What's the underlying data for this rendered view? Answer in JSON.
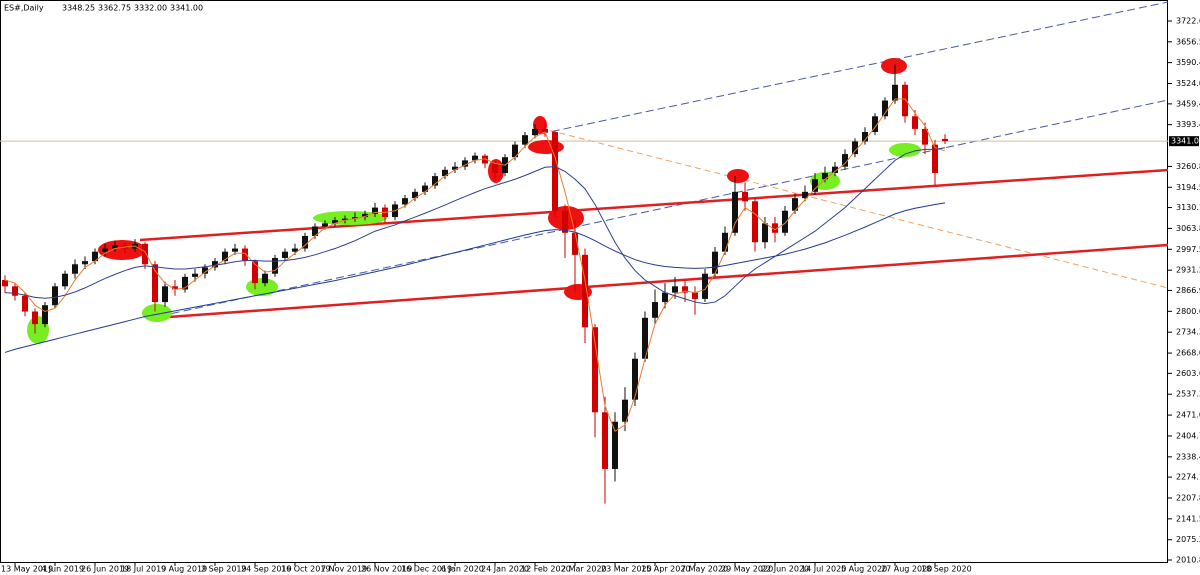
{
  "chart_data": {
    "type": "candlestick",
    "title": "ES#,Daily",
    "ohlc_labels": [
      "3348.25",
      "3362.75",
      "3332.00",
      "3341.00"
    ],
    "categories": [
      null,
      "13 May 2019",
      null,
      null,
      null,
      "4 Jun 2019",
      null,
      null,
      null,
      "26 Jun 2019",
      null,
      null,
      null,
      "18 Jul 2019",
      null,
      null,
      null,
      "9 Aug 2019",
      null,
      null,
      null,
      "2 Sep 2019",
      null,
      null,
      null,
      "24 Sep 2019",
      null,
      null,
      null,
      "16 Oct 2019",
      null,
      null,
      null,
      "7 Nov 2019",
      null,
      null,
      null,
      "26 Nov 2019",
      null,
      null,
      null,
      "16 Dec 2019",
      null,
      null,
      null,
      "6 Jan 2020",
      null,
      null,
      null,
      "24 Jan 2020",
      null,
      null,
      null,
      "12 Feb 2020",
      null,
      null,
      null,
      "2 Mar 2020",
      null,
      null,
      null,
      "23 Mar 2020",
      null,
      null,
      null,
      "15 Apr 2020",
      null,
      null,
      null,
      "7 May 2020",
      null,
      null,
      null,
      "29 May 2020",
      null,
      null,
      null,
      "22 Jun 2020",
      null,
      null,
      null,
      "14 Jul 2020",
      null,
      null,
      null,
      "5 Aug 2020",
      null,
      null,
      null,
      "27 Aug 2020",
      null,
      null,
      null,
      "18 Sep 2020",
      null
    ],
    "open": [
      2900,
      2880,
      2850,
      2800,
      2760,
      2820,
      2880,
      2920,
      2950,
      2960,
      2990,
      3000,
      3010,
      3000,
      3015,
      2950,
      2830,
      2880,
      2870,
      2910,
      2920,
      2940,
      2960,
      2990,
      3000,
      2960,
      2890,
      2920,
      2970,
      2990,
      3000,
      3040,
      3070,
      3080,
      3090,
      3095,
      3100,
      3110,
      3130,
      3100,
      3140,
      3160,
      3180,
      3200,
      3230,
      3250,
      3260,
      3280,
      3295,
      3270,
      3240,
      3290,
      3330,
      3360,
      3380,
      3370,
      3120,
      3050,
      2980,
      2750,
      2480,
      2300,
      2450,
      2520,
      2650,
      2780,
      2830,
      2860,
      2880,
      2860,
      2840,
      2920,
      2990,
      3050,
      3180,
      3150,
      3020,
      3080,
      3050,
      3120,
      3160,
      3180,
      3220,
      3240,
      3260,
      3300,
      3340,
      3370,
      3420,
      3470,
      3520,
      3420,
      3380,
      3330,
      3348.25
    ],
    "high": [
      2915,
      2890,
      2860,
      2810,
      2830,
      2890,
      2930,
      2965,
      2975,
      3000,
      3015,
      3025,
      3020,
      3030,
      3020,
      2960,
      2895,
      2900,
      2920,
      2935,
      2950,
      2970,
      3000,
      3015,
      3010,
      2965,
      2930,
      2980,
      3000,
      3015,
      3050,
      3080,
      3090,
      3100,
      3105,
      3115,
      3120,
      3145,
      3140,
      3150,
      3170,
      3190,
      3210,
      3240,
      3260,
      3275,
      3290,
      3305,
      3300,
      3280,
      3300,
      3340,
      3370,
      3395,
      3400,
      3375,
      3140,
      3090,
      3000,
      2760,
      2530,
      2480,
      2560,
      2670,
      2800,
      2870,
      2890,
      2910,
      2900,
      2880,
      2935,
      3005,
      3070,
      3230,
      3210,
      3160,
      3100,
      3100,
      3135,
      3175,
      3200,
      3240,
      3260,
      3275,
      3315,
      3350,
      3385,
      3430,
      3480,
      3585,
      3530,
      3440,
      3400,
      3345,
      3362.75
    ],
    "low": [
      2860,
      2835,
      2785,
      2730,
      2750,
      2810,
      2870,
      2905,
      2935,
      2950,
      2975,
      2990,
      2985,
      2990,
      2935,
      2800,
      2815,
      2850,
      2860,
      2895,
      2905,
      2930,
      2950,
      2980,
      2945,
      2870,
      2880,
      2910,
      2960,
      2980,
      2990,
      3030,
      3060,
      3070,
      3080,
      3085,
      3090,
      3100,
      3080,
      3090,
      3130,
      3150,
      3170,
      3190,
      3220,
      3240,
      3250,
      3270,
      3255,
      3215,
      3230,
      3280,
      3320,
      3350,
      3355,
      3100,
      2970,
      2860,
      2700,
      2400,
      2190,
      2260,
      2420,
      2500,
      2640,
      2760,
      2810,
      2840,
      2830,
      2790,
      2830,
      2910,
      2980,
      3040,
      3120,
      2990,
      3000,
      3020,
      3040,
      3110,
      3150,
      3170,
      3210,
      3230,
      3250,
      3290,
      3330,
      3360,
      3410,
      3460,
      3400,
      3360,
      3300,
      3200,
      3332
    ],
    "close": [
      2880,
      2850,
      2800,
      2760,
      2820,
      2880,
      2920,
      2950,
      2960,
      2990,
      3000,
      3010,
      3000,
      3015,
      2950,
      2830,
      2880,
      2870,
      2910,
      2920,
      2940,
      2960,
      2990,
      3000,
      2960,
      2890,
      2920,
      2970,
      2990,
      3000,
      3040,
      3070,
      3080,
      3090,
      3095,
      3100,
      3110,
      3130,
      3100,
      3140,
      3160,
      3180,
      3200,
      3230,
      3250,
      3260,
      3280,
      3295,
      3270,
      3240,
      3290,
      3330,
      3360,
      3380,
      3370,
      3120,
      3050,
      2980,
      2750,
      2480,
      2300,
      2450,
      2520,
      2650,
      2780,
      2830,
      2860,
      2880,
      2860,
      2840,
      2920,
      2990,
      3050,
      3180,
      3150,
      3020,
      3080,
      3050,
      3120,
      3160,
      3180,
      3220,
      3240,
      3260,
      3300,
      3340,
      3370,
      3420,
      3470,
      3520,
      3420,
      3380,
      3330,
      3240,
      3341
    ],
    "up_color": "#111111",
    "down_color": "#d00000",
    "series": [
      {
        "color": "#ee7a30",
        "values": [
          2900,
          2890,
          2860,
          2820,
          2800,
          2810,
          2850,
          2900,
          2940,
          2960,
          2985,
          3000,
          3005,
          3008,
          2990,
          2930,
          2890,
          2870,
          2875,
          2900,
          2925,
          2945,
          2965,
          2985,
          2985,
          2950,
          2925,
          2930,
          2960,
          2985,
          3010,
          3040,
          3065,
          3080,
          3090,
          3095,
          3102,
          3115,
          3115,
          3120,
          3135,
          3160,
          3180,
          3205,
          3230,
          3250,
          3265,
          3280,
          3285,
          3270,
          3265,
          3290,
          3325,
          3355,
          3370,
          3290,
          3180,
          3050,
          2900,
          2700,
          2500,
          2420,
          2440,
          2530,
          2650,
          2760,
          2820,
          2855,
          2865,
          2860,
          2870,
          2920,
          2990,
          3080,
          3130,
          3110,
          3080,
          3060,
          3080,
          3120,
          3155,
          3190,
          3220,
          3245,
          3270,
          3310,
          3345,
          3385,
          3430,
          3475,
          3475,
          3430,
          3390,
          3320,
          3310
        ]
      },
      {
        "color": "#2e3f8c",
        "values": [
          2860,
          2858,
          2852,
          2845,
          2842,
          2845,
          2852,
          2862,
          2875,
          2890,
          2905,
          2918,
          2930,
          2940,
          2945,
          2942,
          2938,
          2935,
          2935,
          2938,
          2942,
          2947,
          2952,
          2958,
          2962,
          2962,
          2960,
          2960,
          2962,
          2966,
          2972,
          2980,
          2990,
          3000,
          3012,
          3025,
          3040,
          3055,
          3065,
          3075,
          3088,
          3100,
          3112,
          3125,
          3138,
          3152,
          3165,
          3178,
          3190,
          3200,
          3210,
          3220,
          3232,
          3245,
          3258,
          3260,
          3245,
          3220,
          3190,
          3140,
          3080,
          3020,
          2970,
          2930,
          2900,
          2880,
          2860,
          2850,
          2840,
          2830,
          2825,
          2830,
          2850,
          2880,
          2910,
          2935,
          2955,
          2975,
          2995,
          3015,
          3035,
          3055,
          3080,
          3105,
          3130,
          3160,
          3190,
          3220,
          3250,
          3280,
          3300,
          3310,
          3315,
          3315,
          3320
        ]
      },
      {
        "color": "#1f3a93",
        "values": [
          2670,
          2680,
          2688,
          2696,
          2704,
          2712,
          2720,
          2728,
          2736,
          2744,
          2752,
          2760,
          2768,
          2776,
          2784,
          2790,
          2796,
          2802,
          2808,
          2814,
          2820,
          2826,
          2832,
          2838,
          2844,
          2850,
          2856,
          2862,
          2868,
          2874,
          2880,
          2886,
          2892,
          2898,
          2905,
          2912,
          2919,
          2926,
          2933,
          2940,
          2947,
          2955,
          2963,
          2971,
          2979,
          2987,
          2995,
          3003,
          3011,
          3019,
          3027,
          3035,
          3043,
          3050,
          3057,
          3060,
          3058,
          3052,
          3040,
          3025,
          3008,
          2992,
          2978,
          2965,
          2955,
          2948,
          2943,
          2940,
          2938,
          2937,
          2938,
          2941,
          2946,
          2952,
          2958,
          2964,
          2970,
          2976,
          2982,
          2990,
          2998,
          3008,
          3018,
          3030,
          3042,
          3055,
          3068,
          3082,
          3096,
          3110,
          3120,
          3128,
          3134,
          3140,
          3145
        ]
      }
    ],
    "last_price": {
      "value": 3341,
      "label": "3341.00"
    },
    "last_price_color": "#cdbf95",
    "ylim": [
      2001.3,
      3789.3
    ],
    "yticks": [
      3722.65,
      3656.55,
      3590.45,
      3524.05,
      {
        "value": 3459.4,
        "label": "3459.40"
      },
      {
        "value": 3393.4,
        "label": "3393.40"
      },
      {
        "value": 3260.8,
        "label": "3260.80"
      },
      {
        "value": 3194.5,
        "label": "3194.50"
      },
      3130.15,
      3063.85,
      2997.55,
      2931.25,
      {
        "value": 2866.9,
        "label": "2866.90"
      },
      {
        "value": 2800.6,
        "label": "2800.60"
      },
      {
        "value": 2734.3,
        "label": "2734.30"
      },
      {
        "value": 2668,
        "label": "2668.00"
      },
      2603.65,
      2537.35,
      2471.05,
      2404.75,
      2338.45,
      {
        "value": 2274.1,
        "label": "2274.10"
      },
      {
        "value": 2207.8,
        "label": "2207.80"
      },
      2141.55,
      {
        "value": 2075.2,
        "label": "2075.20"
      },
      2010.85
    ],
    "grid": false
  }
}
